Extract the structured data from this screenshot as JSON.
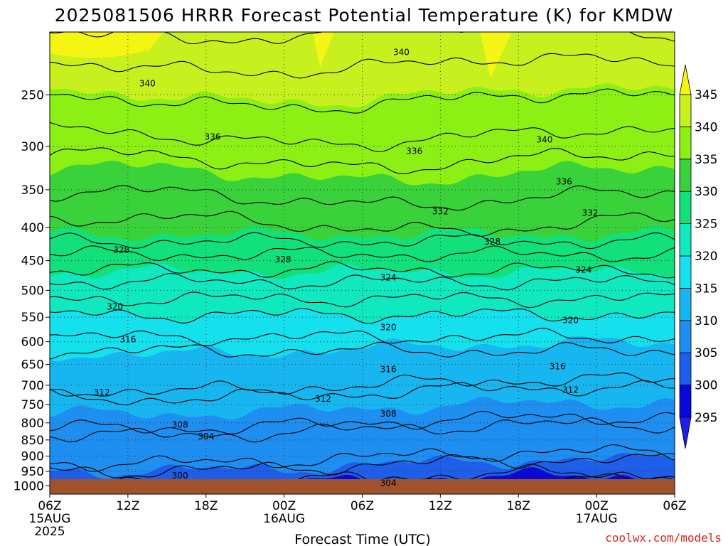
{
  "chart_data": {
    "type": "heatmap",
    "title": "2025081506 HRRR Forecast Potential Temperature (K) for KMDW",
    "xlabel": "Forecast Time (UTC)",
    "ylabel": "",
    "y_scale": "log",
    "y_inverted": true,
    "ylim": [
      1030,
      200
    ],
    "y_ticks": [
      1000,
      950,
      900,
      850,
      800,
      750,
      700,
      650,
      600,
      550,
      500,
      450,
      400,
      350,
      300,
      250
    ],
    "x_ticks": [
      {
        "time": "2025-08-15T06:00Z",
        "label": "06Z",
        "sub1": "15AUG",
        "sub2": "2025"
      },
      {
        "time": "2025-08-15T12:00Z",
        "label": "12Z",
        "sub1": "",
        "sub2": ""
      },
      {
        "time": "2025-08-15T18:00Z",
        "label": "18Z",
        "sub1": "",
        "sub2": ""
      },
      {
        "time": "2025-08-16T00:00Z",
        "label": "00Z",
        "sub1": "16AUG",
        "sub2": ""
      },
      {
        "time": "2025-08-16T06:00Z",
        "label": "06Z",
        "sub1": "",
        "sub2": ""
      },
      {
        "time": "2025-08-16T12:00Z",
        "label": "12Z",
        "sub1": "",
        "sub2": ""
      },
      {
        "time": "2025-08-16T18:00Z",
        "label": "18Z",
        "sub1": "",
        "sub2": ""
      },
      {
        "time": "2025-08-17T00:00Z",
        "label": "00Z",
        "sub1": "17AUG",
        "sub2": ""
      },
      {
        "time": "2025-08-17T06:00Z",
        "label": "06Z",
        "sub1": "",
        "sub2": ""
      }
    ],
    "grid": true,
    "colorbar": {
      "levels": [
        295,
        300,
        305,
        310,
        315,
        320,
        325,
        330,
        335,
        340,
        345
      ],
      "colors": [
        "#1f1fe6",
        "#0a0ad8",
        "#1e5ee8",
        "#1e8ff0",
        "#18b6f0",
        "#14e0ee",
        "#10e8c0",
        "#12e07a",
        "#3ad23a",
        "#8cf014",
        "#c8f01e",
        "#f5f514"
      ],
      "extend": "both",
      "placement": "right"
    },
    "ground_color": "#a0522d",
    "contour_levels": [
      300,
      304,
      308,
      312,
      316,
      320,
      324,
      328,
      332,
      336,
      340
    ],
    "contour_labels": [
      {
        "value": "340",
        "time": "2025-08-16T09:00Z",
        "p": 215
      },
      {
        "value": "340",
        "time": "2025-08-15T13:30Z",
        "p": 240
      },
      {
        "value": "336",
        "time": "2025-08-15T18:30Z",
        "p": 290
      },
      {
        "value": "336",
        "time": "2025-08-16T10:00Z",
        "p": 305
      },
      {
        "value": "340",
        "time": "2025-08-16T20:00Z",
        "p": 293
      },
      {
        "value": "336",
        "time": "2025-08-16T21:30Z",
        "p": 340
      },
      {
        "value": "332",
        "time": "2025-08-16T12:00Z",
        "p": 378
      },
      {
        "value": "332",
        "time": "2025-08-16T23:30Z",
        "p": 380
      },
      {
        "value": "328",
        "time": "2025-08-15T11:30Z",
        "p": 433
      },
      {
        "value": "328",
        "time": "2025-08-15T23:55Z",
        "p": 448
      },
      {
        "value": "328",
        "time": "2025-08-16T16:00Z",
        "p": 421
      },
      {
        "value": "324",
        "time": "2025-08-16T08:00Z",
        "p": 478
      },
      {
        "value": "324",
        "time": "2025-08-16T23:00Z",
        "p": 465
      },
      {
        "value": "320",
        "time": "2025-08-15T11:00Z",
        "p": 530
      },
      {
        "value": "320",
        "time": "2025-08-16T08:00Z",
        "p": 570
      },
      {
        "value": "320",
        "time": "2025-08-16T22:00Z",
        "p": 556
      },
      {
        "value": "316",
        "time": "2025-08-15T12:00Z",
        "p": 595
      },
      {
        "value": "316",
        "time": "2025-08-16T08:00Z",
        "p": 662
      },
      {
        "value": "316",
        "time": "2025-08-16T21:00Z",
        "p": 655
      },
      {
        "value": "312",
        "time": "2025-08-15T10:00Z",
        "p": 718
      },
      {
        "value": "312",
        "time": "2025-08-16T03:00Z",
        "p": 735
      },
      {
        "value": "312",
        "time": "2025-08-16T22:00Z",
        "p": 712
      },
      {
        "value": "308",
        "time": "2025-08-15T16:00Z",
        "p": 805
      },
      {
        "value": "308",
        "time": "2025-08-16T08:00Z",
        "p": 775
      },
      {
        "value": "304",
        "time": "2025-08-15T18:00Z",
        "p": 840
      },
      {
        "value": "304",
        "time": "2025-08-16T08:00Z",
        "p": 990
      },
      {
        "value": "300",
        "time": "2025-08-15T16:00Z",
        "p": 965
      }
    ]
  },
  "footer": {
    "credit": "coolwx.com/models"
  }
}
